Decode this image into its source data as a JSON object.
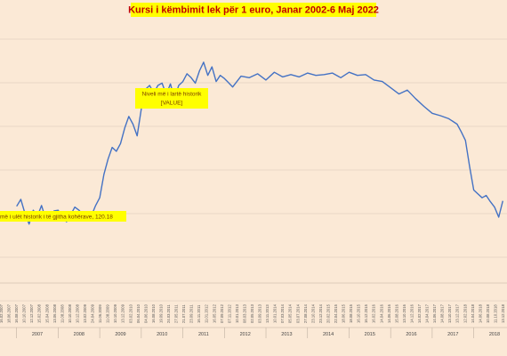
{
  "chart_data": {
    "type": "line",
    "title": "Kursi i këmbimit lek për 1 euro, Janar 2002-6  Maj 2022",
    "xlabel": "",
    "ylabel": "",
    "grid": true,
    "legend": "none",
    "colors": {
      "series": "#4472c4",
      "title": "#c00000",
      "annotation_bg": "#ffff00",
      "background": "#fbe9d6"
    },
    "annotations": [
      {
        "text": "Niveli më i lartë historik",
        "subtext": "[VALUE]"
      },
      {
        "text": "më i ulët historik i të gjitha kohërave, 120.18"
      }
    ],
    "x_years": [
      "2007",
      "2008",
      "2009",
      "2010",
      "2011",
      "2012",
      "2013",
      "2014",
      "2015",
      "2016",
      "2017",
      "2018"
    ],
    "x_tick_labels": [
      "16.02.2007",
      "18.06.2007",
      "16.08.2007",
      "10.10.2007",
      "12.12.2007",
      "15.02.2008",
      "15.04.2008",
      "13.06.2008",
      "11.08.2008",
      "10.10.2008",
      "10.12.2008",
      "13.02.2009",
      "24.04.2009",
      "11.06.2009",
      "11.08.2009",
      "10.10.2009",
      "13.12.2009",
      "03.02.2010",
      "06.04.2010",
      "04.06.2010",
      "16.08.2010",
      "19.09.2010",
      "24.03.2011",
      "27.05.2011",
      "21.07.2011",
      "23.09.2011",
      "16.11.2011",
      "11.01.2012",
      "16.05.2012",
      "07.09.2012",
      "07.11.2012",
      "10.01.2013",
      "08.03.2013",
      "02.05.2013",
      "03.09.2013",
      "13.11.2013",
      "10.01.2014",
      "07.03.2014",
      "05.05.2014",
      "03.07.2014",
      "27.08.2014",
      "23.10.2014",
      "23.12.2014",
      "20.02.2015",
      "22.04.2015",
      "18.06.2015",
      "18.08.2015",
      "16.10.2015",
      "16.12.2015",
      "16.02.2016",
      "14.04.2016",
      "14.06.2016",
      "15.08.2016",
      "13.10.2016",
      "14.12.2016",
      "14.02.2017",
      "14.04.2017",
      "14.06.2017",
      "14.08.2017",
      "13.10.2017",
      "13.12.2017",
      "12.02.2018",
      "14.04.2018",
      "14.06.2018",
      "10.08.2018",
      "11.10.2018",
      "13.12.2018"
    ],
    "x": [
      2007.0,
      2007.1,
      2007.2,
      2007.3,
      2007.4,
      2007.5,
      2007.6,
      2007.7,
      2007.8,
      2007.9,
      2008.0,
      2008.1,
      2008.2,
      2008.3,
      2008.4,
      2008.5,
      2008.6,
      2008.7,
      2008.8,
      2008.9,
      2009.0,
      2009.1,
      2009.2,
      2009.3,
      2009.4,
      2009.5,
      2009.6,
      2009.7,
      2009.8,
      2009.9,
      2010.0,
      2010.1,
      2010.2,
      2010.3,
      2010.4,
      2010.5,
      2010.6,
      2010.7,
      2010.8,
      2010.9,
      2011.0,
      2011.1,
      2011.2,
      2011.3,
      2011.4,
      2011.5,
      2011.6,
      2011.7,
      2011.8,
      2011.9,
      2012.0,
      2012.2,
      2012.4,
      2012.6,
      2012.8,
      2013.0,
      2013.2,
      2013.4,
      2013.6,
      2013.8,
      2014.0,
      2014.2,
      2014.4,
      2014.6,
      2014.8,
      2015.0,
      2015.2,
      2015.4,
      2015.6,
      2015.8,
      2016.0,
      2016.2,
      2016.4,
      2016.6,
      2016.8,
      2017.0,
      2017.2,
      2017.4,
      2017.6,
      2017.7,
      2017.8,
      2017.9,
      2018.0,
      2018.1,
      2018.2,
      2018.3,
      2018.4,
      2018.5,
      2018.6,
      2018.7
    ],
    "values": [
      122.9,
      123.8,
      122.0,
      120.6,
      122.4,
      121.6,
      123.0,
      121.3,
      121.1,
      122.3,
      122.4,
      121.5,
      120.9,
      121.8,
      122.8,
      122.4,
      121.8,
      121.3,
      121.7,
      123.0,
      124.0,
      127.0,
      129.0,
      130.5,
      130.0,
      131.0,
      133.0,
      134.5,
      133.5,
      132.0,
      135.5,
      138.0,
      138.5,
      137.5,
      138.5,
      138.8,
      137.3,
      138.7,
      136.8,
      138.5,
      139.0,
      140.0,
      139.5,
      138.8,
      140.4,
      141.5,
      139.8,
      140.9,
      139.0,
      139.8,
      139.4,
      138.3,
      139.7,
      139.5,
      140.0,
      139.2,
      140.2,
      139.6,
      139.9,
      139.6,
      140.1,
      139.8,
      139.9,
      140.1,
      139.5,
      140.2,
      139.8,
      139.9,
      139.2,
      139.0,
      138.2,
      137.4,
      137.9,
      136.8,
      135.8,
      134.9,
      134.6,
      134.2,
      133.5,
      132.5,
      131.4,
      128.0,
      125.0,
      124.5,
      124.0,
      124.3,
      123.5,
      122.8,
      121.5,
      123.6
    ],
    "ylim": [
      113,
      147
    ],
    "xlim": [
      2006.6,
      2018.8
    ]
  }
}
